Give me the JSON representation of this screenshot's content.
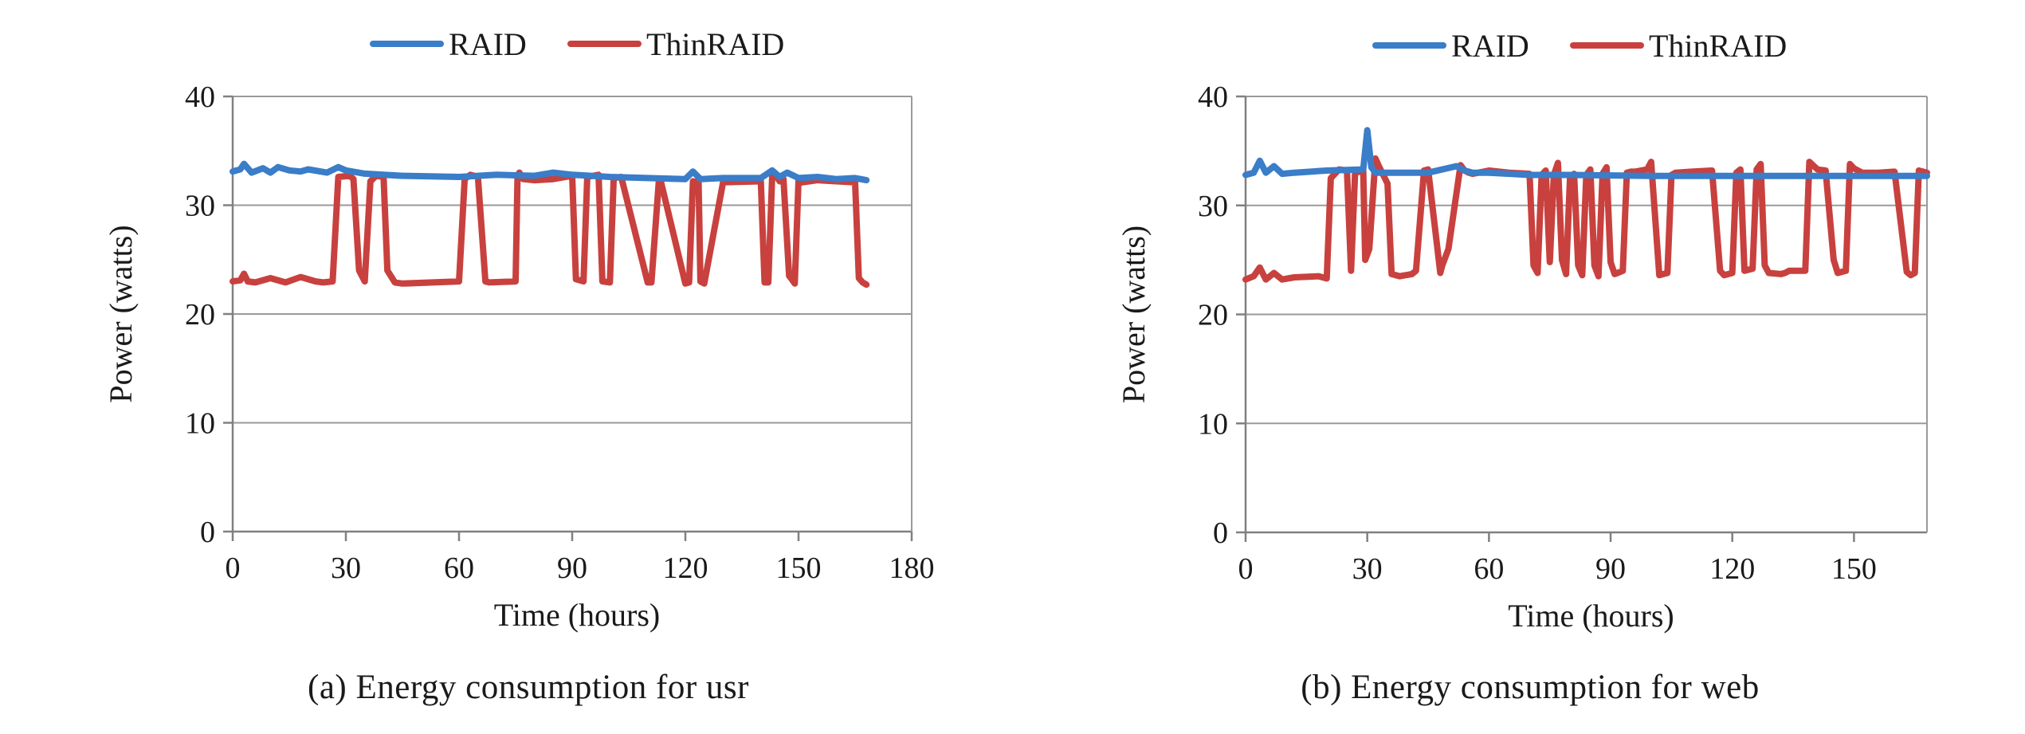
{
  "legend": {
    "raid_label": "RAID",
    "thinraid_label": "ThinRAID"
  },
  "colors": {
    "raid": "#3a7dc8",
    "thinraid": "#c8413e",
    "grid": "#9a9a9a",
    "axis": "#808080"
  },
  "captions": {
    "a": "(a) Energy consumption for usr",
    "b": "(b) Energy consumption for web"
  },
  "chart_data": [
    {
      "type": "line",
      "xlabel": "Time (hours)",
      "ylabel": "Power (watts)",
      "xlim": [
        0,
        180
      ],
      "ylim": [
        0,
        40
      ],
      "xticks": [
        "0",
        "30",
        "60",
        "90",
        "120",
        "150",
        "180"
      ],
      "yticks": [
        "0",
        "10",
        "20",
        "30",
        "40"
      ],
      "grid": "horizontal",
      "legend_position": "top-center",
      "series": [
        {
          "name": "RAID",
          "x": [
            0,
            2,
            3,
            5,
            8,
            10,
            12,
            15,
            18,
            20,
            25,
            28,
            30,
            35,
            45,
            60,
            70,
            80,
            85,
            90,
            100,
            110,
            120,
            122,
            124,
            130,
            140,
            143,
            145,
            147,
            150,
            155,
            160,
            165,
            168
          ],
          "y": [
            33.1,
            33.3,
            33.8,
            33.0,
            33.4,
            33.0,
            33.5,
            33.2,
            33.1,
            33.3,
            33.0,
            33.5,
            33.2,
            32.9,
            32.7,
            32.6,
            32.8,
            32.7,
            33.0,
            32.8,
            32.6,
            32.5,
            32.4,
            33.1,
            32.4,
            32.5,
            32.5,
            33.2,
            32.6,
            33.0,
            32.5,
            32.6,
            32.4,
            32.5,
            32.3
          ]
        },
        {
          "name": "ThinRAID",
          "x": [
            0,
            2,
            3,
            4,
            6,
            10,
            14,
            18,
            22,
            24,
            26.5,
            28,
            31,
            32,
            33.5,
            35,
            36.5,
            38,
            40,
            41,
            43,
            45,
            60,
            61.5,
            63,
            65,
            67,
            68,
            75,
            75.5,
            76,
            77,
            80,
            85,
            90,
            91,
            93,
            94,
            97,
            98,
            100,
            101,
            103,
            110,
            111,
            113,
            113.5,
            120,
            121,
            122,
            123.5,
            124,
            125,
            130,
            140,
            141,
            142,
            143,
            144,
            145,
            146,
            147.5,
            148,
            149,
            150,
            151,
            155,
            160,
            165,
            166,
            167,
            168
          ],
          "y": [
            23.0,
            23.1,
            23.7,
            23.0,
            22.9,
            23.3,
            22.9,
            23.4,
            23.0,
            22.9,
            23.0,
            32.6,
            32.7,
            32.4,
            24.0,
            23.0,
            32.2,
            32.7,
            32.6,
            24.0,
            22.9,
            22.8,
            23.0,
            32.4,
            32.8,
            32.6,
            23.0,
            22.9,
            23.0,
            32.7,
            33.0,
            32.4,
            32.3,
            32.4,
            32.7,
            23.2,
            23.0,
            32.6,
            32.8,
            23.0,
            22.9,
            32.5,
            32.6,
            22.9,
            22.9,
            32.4,
            32.2,
            22.8,
            22.9,
            32.2,
            32.1,
            23.0,
            22.8,
            32.1,
            32.2,
            22.9,
            22.9,
            32.6,
            32.8,
            32.2,
            32.4,
            23.5,
            23.3,
            22.8,
            32.3,
            32.1,
            32.3,
            32.2,
            32.1,
            23.3,
            22.9,
            22.7
          ]
        }
      ]
    },
    {
      "type": "line",
      "xlabel": "Time (hours)",
      "ylabel": "Power (watts)",
      "xlim": [
        0,
        168
      ],
      "ylim": [
        0,
        40
      ],
      "xticks": [
        "0",
        "30",
        "60",
        "90",
        "120",
        "150"
      ],
      "yticks": [
        "0",
        "10",
        "20",
        "30",
        "40"
      ],
      "grid": "horizontal",
      "legend_position": "top-center",
      "series": [
        {
          "name": "RAID",
          "x": [
            0,
            2,
            3.5,
            5,
            7,
            9,
            12,
            20,
            29,
            30,
            31,
            32,
            35,
            45,
            52,
            54,
            56,
            60,
            70,
            80,
            100,
            130,
            168
          ],
          "y": [
            32.8,
            33.0,
            34.1,
            33.0,
            33.6,
            32.9,
            33.0,
            33.2,
            33.3,
            36.9,
            33.5,
            33.0,
            33.0,
            33.0,
            33.6,
            33.2,
            33.0,
            33.0,
            32.8,
            32.8,
            32.7,
            32.7,
            32.7
          ]
        },
        {
          "name": "ThinRAID",
          "x": [
            0,
            2,
            3.5,
            5,
            7,
            9,
            12,
            18,
            20,
            21,
            23,
            25,
            26,
            27,
            29,
            29.5,
            30.5,
            32,
            33,
            35,
            36,
            38,
            41,
            42,
            44,
            45,
            48,
            48.5,
            49,
            50,
            53,
            54,
            55,
            56,
            60,
            65,
            70,
            71,
            72,
            73,
            74,
            75,
            76,
            77,
            78,
            79,
            80,
            81,
            82,
            83,
            84,
            85,
            86,
            87,
            88,
            89,
            90,
            91,
            93,
            94,
            95,
            96,
            99,
            100,
            102,
            104,
            105,
            106,
            110,
            115,
            117,
            118,
            120,
            121,
            122,
            123,
            125,
            126,
            127,
            128,
            129,
            132,
            133,
            134,
            138,
            139,
            141,
            143,
            145,
            146,
            148,
            149,
            150,
            152,
            153,
            156,
            160,
            163,
            164,
            165,
            166,
            168
          ],
          "y": [
            23.2,
            23.5,
            24.3,
            23.2,
            23.8,
            23.2,
            23.4,
            23.5,
            23.3,
            32.5,
            33.3,
            33.2,
            24.0,
            33.0,
            33.2,
            25.0,
            26.0,
            34.3,
            33.5,
            32.0,
            23.7,
            23.5,
            23.7,
            24.0,
            33.2,
            33.3,
            23.8,
            24.5,
            25.0,
            26.0,
            33.7,
            33.2,
            33.0,
            32.9,
            33.2,
            33.0,
            32.9,
            24.5,
            23.8,
            32.8,
            33.2,
            24.8,
            32.8,
            33.9,
            25.0,
            23.7,
            32.6,
            32.9,
            24.5,
            23.6,
            32.8,
            33.3,
            24.5,
            23.5,
            32.9,
            33.5,
            24.8,
            23.7,
            24.0,
            33.0,
            33.1,
            33.1,
            33.3,
            34.0,
            23.6,
            23.8,
            32.8,
            33.0,
            33.1,
            33.2,
            24.0,
            23.6,
            23.8,
            33.0,
            33.3,
            24.0,
            24.2,
            33.3,
            33.8,
            24.5,
            23.8,
            23.7,
            23.8,
            24.0,
            24.0,
            34.0,
            33.3,
            33.2,
            25.0,
            23.8,
            24.0,
            33.8,
            33.4,
            33.0,
            33.0,
            33.0,
            33.1,
            23.9,
            23.6,
            23.8,
            33.2,
            33.0
          ]
        }
      ]
    }
  ]
}
